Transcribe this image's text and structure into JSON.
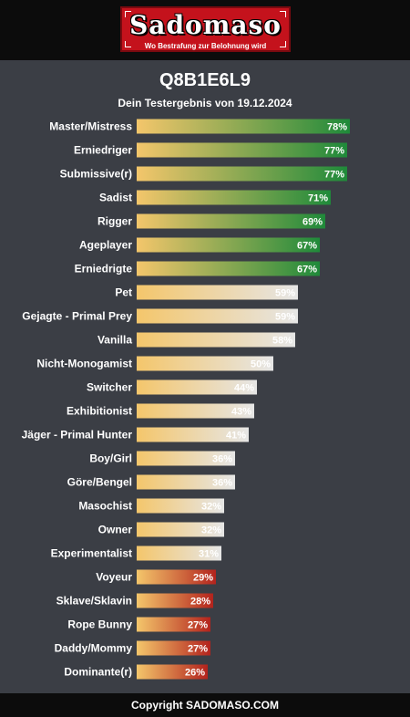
{
  "brand": {
    "logo_text": "Sadomaso",
    "logo_tagline": "Wo Bestrafung zur Belohnung wird"
  },
  "header": {
    "title": "Q8B1E6L9",
    "subtitle": "Dein Testergebnis von 19.12.2024"
  },
  "colors": {
    "background": "#3b3e45",
    "high_end": "#1f8a3a",
    "mid_end": "#e6e6e6",
    "low_end": "#b3231d",
    "bar_start": "#f4c66b"
  },
  "chart_data": {
    "type": "bar",
    "orientation": "horizontal",
    "xlim": [
      0,
      100
    ],
    "unit": "%",
    "categories": [
      "Master/Mistress",
      "Erniedriger",
      "Submissive(r)",
      "Sadist",
      "Rigger",
      "Ageplayer",
      "Erniedrigte",
      "Pet",
      "Gejagte - Primal Prey",
      "Vanilla",
      "Nicht-Monogamist",
      "Switcher",
      "Exhibitionist",
      "Jäger - Primal Hunter",
      "Boy/Girl",
      "Göre/Bengel",
      "Masochist",
      "Owner",
      "Experimentalist",
      "Voyeur",
      "Sklave/Sklavin",
      "Rope Bunny",
      "Daddy/Mommy",
      "Dominante(r)"
    ],
    "values": [
      78,
      77,
      77,
      71,
      69,
      67,
      67,
      59,
      59,
      58,
      50,
      44,
      43,
      41,
      36,
      36,
      32,
      32,
      31,
      29,
      28,
      27,
      27,
      26
    ],
    "value_labels": [
      "78%",
      "77%",
      "77%",
      "71%",
      "69%",
      "67%",
      "67%",
      "59%",
      "59%",
      "58%",
      "50%",
      "44%",
      "43%",
      "41%",
      "36%",
      "36%",
      "32%",
      "32%",
      "31%",
      "29%",
      "28%",
      "27%",
      "27%",
      "26%"
    ]
  },
  "footer": {
    "copyright": "Copyright SADOMASO.COM"
  }
}
